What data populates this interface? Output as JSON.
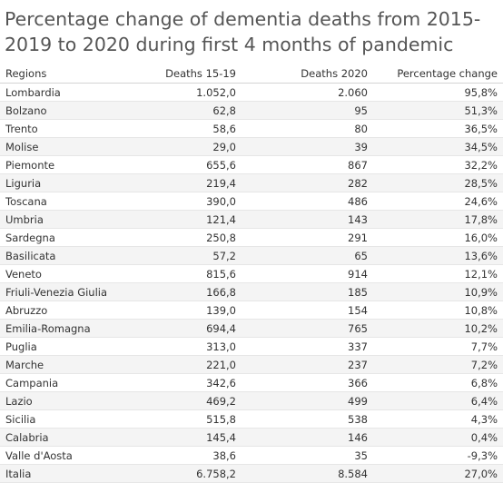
{
  "chart_data": {
    "type": "table",
    "title": "Percentage change of dementia deaths from 2015-2019 to 2020 during first 4 months of pandemic",
    "columns": [
      "Regions",
      "Deaths 15-19",
      "Deaths 2020",
      "Percentage change"
    ],
    "rows": [
      {
        "region": "Lombardia",
        "deaths_15_19": "1.052,0",
        "deaths_2020": "2.060",
        "pct_change": "95,8%"
      },
      {
        "region": "Bolzano",
        "deaths_15_19": "62,8",
        "deaths_2020": "95",
        "pct_change": "51,3%"
      },
      {
        "region": "Trento",
        "deaths_15_19": "58,6",
        "deaths_2020": "80",
        "pct_change": "36,5%"
      },
      {
        "region": "Molise",
        "deaths_15_19": "29,0",
        "deaths_2020": "39",
        "pct_change": "34,5%"
      },
      {
        "region": "Piemonte",
        "deaths_15_19": "655,6",
        "deaths_2020": "867",
        "pct_change": "32,2%"
      },
      {
        "region": "Liguria",
        "deaths_15_19": "219,4",
        "deaths_2020": "282",
        "pct_change": "28,5%"
      },
      {
        "region": "Toscana",
        "deaths_15_19": "390,0",
        "deaths_2020": "486",
        "pct_change": "24,6%"
      },
      {
        "region": "Umbria",
        "deaths_15_19": "121,4",
        "deaths_2020": "143",
        "pct_change": "17,8%"
      },
      {
        "region": "Sardegna",
        "deaths_15_19": "250,8",
        "deaths_2020": "291",
        "pct_change": "16,0%"
      },
      {
        "region": "Basilicata",
        "deaths_15_19": "57,2",
        "deaths_2020": "65",
        "pct_change": "13,6%"
      },
      {
        "region": "Veneto",
        "deaths_15_19": "815,6",
        "deaths_2020": "914",
        "pct_change": "12,1%"
      },
      {
        "region": "Friuli-Venezia Giulia",
        "deaths_15_19": "166,8",
        "deaths_2020": "185",
        "pct_change": "10,9%"
      },
      {
        "region": "Abruzzo",
        "deaths_15_19": "139,0",
        "deaths_2020": "154",
        "pct_change": "10,8%"
      },
      {
        "region": "Emilia-Romagna",
        "deaths_15_19": "694,4",
        "deaths_2020": "765",
        "pct_change": "10,2%"
      },
      {
        "region": "Puglia",
        "deaths_15_19": "313,0",
        "deaths_2020": "337",
        "pct_change": "7,7%"
      },
      {
        "region": "Marche",
        "deaths_15_19": "221,0",
        "deaths_2020": "237",
        "pct_change": "7,2%"
      },
      {
        "region": "Campania",
        "deaths_15_19": "342,6",
        "deaths_2020": "366",
        "pct_change": "6,8%"
      },
      {
        "region": "Lazio",
        "deaths_15_19": "469,2",
        "deaths_2020": "499",
        "pct_change": "6,4%"
      },
      {
        "region": "Sicilia",
        "deaths_15_19": "515,8",
        "deaths_2020": "538",
        "pct_change": "4,3%"
      },
      {
        "region": "Calabria",
        "deaths_15_19": "145,4",
        "deaths_2020": "146",
        "pct_change": "0,4%"
      },
      {
        "region": "Valle d'Aosta",
        "deaths_15_19": "38,6",
        "deaths_2020": "35",
        "pct_change": "-9,3%"
      },
      {
        "region": "Italia",
        "deaths_15_19": "6.758,2",
        "deaths_2020": "8.584",
        "pct_change": "27,0%"
      }
    ]
  }
}
